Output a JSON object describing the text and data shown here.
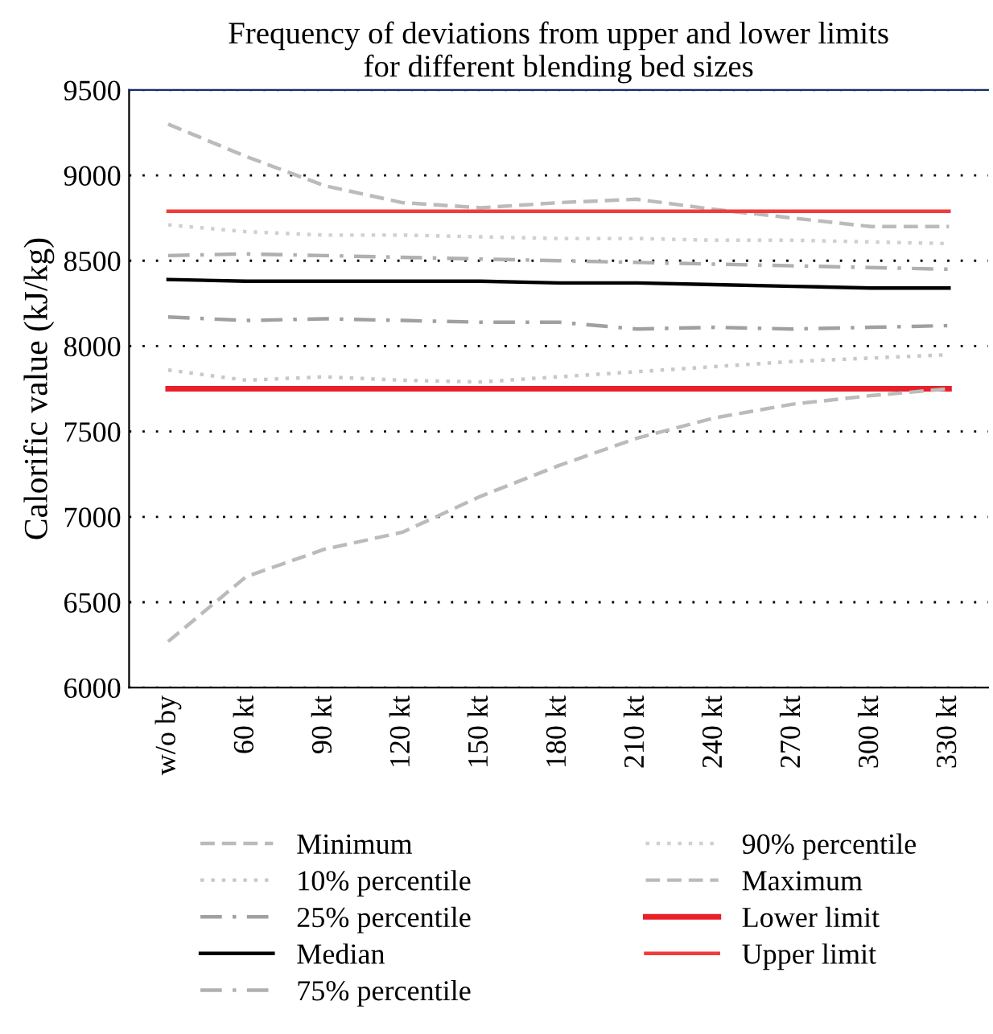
{
  "chart_data": {
    "type": "line",
    "title": "Frequency of deviations from upper and lower limits\nfor different blending bed sizes",
    "ylabel": "Calorific value (kJ/kg)",
    "categories": [
      "w/o by",
      "60 kt",
      "90 kt",
      "120 kt",
      "150 kt",
      "180 kt",
      "210 kt",
      "240 kt",
      "270 kt",
      "300 kt",
      "330 kt"
    ],
    "ylim": [
      6000,
      9500
    ],
    "yticks": [
      6000,
      6500,
      7000,
      7500,
      8000,
      8500,
      9000,
      9500
    ],
    "grid": "y",
    "legend": "bottom",
    "marker": "none",
    "series": [
      {
        "name": "Minimum",
        "color": "#bbbbbb",
        "line_style": "dashed",
        "values": [
          6270,
          6650,
          6810,
          6910,
          7120,
          7300,
          7460,
          7580,
          7660,
          7710,
          7750
        ]
      },
      {
        "name": "10% percentile",
        "color": "#c8c8c8",
        "line_style": "dotted",
        "values": [
          7860,
          7800,
          7820,
          7800,
          7790,
          7820,
          7850,
          7880,
          7910,
          7930,
          7950
        ]
      },
      {
        "name": "25% percentile",
        "color": "#a0a0a0",
        "line_style": "dashdot",
        "values": [
          8170,
          8150,
          8160,
          8150,
          8140,
          8140,
          8100,
          8110,
          8100,
          8110,
          8120
        ]
      },
      {
        "name": "Median",
        "color": "#000000",
        "line_style": "solid",
        "values": [
          8390,
          8380,
          8380,
          8380,
          8380,
          8370,
          8370,
          8360,
          8350,
          8340,
          8340
        ]
      },
      {
        "name": "75% percentile",
        "color": "#b0b0b0",
        "line_style": "dashdot",
        "values": [
          8530,
          8540,
          8530,
          8520,
          8510,
          8500,
          8490,
          8480,
          8470,
          8460,
          8450
        ]
      },
      {
        "name": "90% percentile",
        "color": "#d0d0d0",
        "line_style": "dotted",
        "values": [
          8710,
          8670,
          8650,
          8650,
          8640,
          8630,
          8630,
          8620,
          8620,
          8610,
          8600
        ]
      },
      {
        "name": "Maximum",
        "color": "#bbbbbb",
        "line_style": "dashed",
        "values": [
          9300,
          9110,
          8940,
          8840,
          8810,
          8840,
          8860,
          8800,
          8750,
          8700,
          8700
        ]
      },
      {
        "name": "Lower limit",
        "color": "#e8202a",
        "line_style": "solid",
        "values": [
          7750,
          7750,
          7750,
          7750,
          7750,
          7750,
          7750,
          7750,
          7750,
          7750,
          7750
        ]
      },
      {
        "name": "Upper limit",
        "color": "#f03c3c",
        "line_style": "solid",
        "values": [
          8790,
          8790,
          8790,
          8790,
          8790,
          8790,
          8790,
          8790,
          8790,
          8790,
          8790
        ]
      }
    ]
  }
}
